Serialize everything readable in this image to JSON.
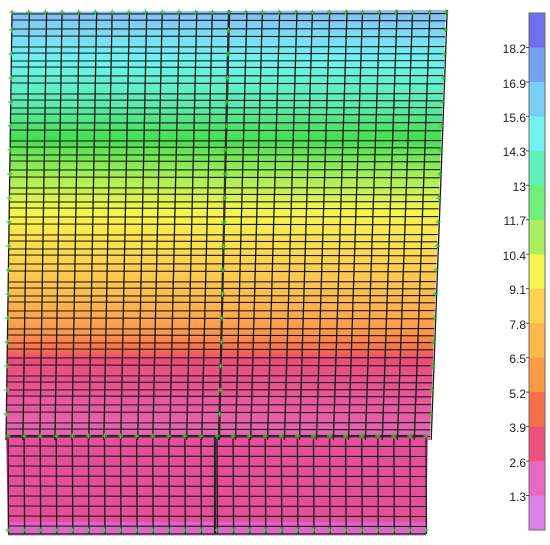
{
  "legend": {
    "labels": [
      "18.2",
      "16.9",
      "15.6",
      "14.3",
      "13",
      "11.7",
      "10.4",
      "9.1",
      "7.8",
      "6.5",
      "5.2",
      "3.9",
      "2.6",
      "1.3"
    ],
    "band_colors": [
      "#7070ee",
      "#74a2f2",
      "#7ad0f7",
      "#72f3ee",
      "#60f0b8",
      "#6ff07a",
      "#a8f060",
      "#f6f650",
      "#fcd24e",
      "#fcb848",
      "#fc9a44",
      "#f86e46",
      "#ee507c",
      "#e868c4",
      "#dc80ea"
    ]
  },
  "contour": {
    "stops": [
      {
        "at": 0.0,
        "color": "#7ab6ee"
      },
      {
        "at": 0.05,
        "color": "#74d4f4"
      },
      {
        "at": 0.12,
        "color": "#5ef4ee"
      },
      {
        "at": 0.22,
        "color": "#4ee8a8"
      },
      {
        "at": 0.3,
        "color": "#36dc40"
      },
      {
        "at": 0.38,
        "color": "#96ec48"
      },
      {
        "at": 0.47,
        "color": "#f6f43c"
      },
      {
        "at": 0.58,
        "color": "#fcd040"
      },
      {
        "at": 0.68,
        "color": "#fcb040"
      },
      {
        "at": 0.75,
        "color": "#fc8c3e"
      },
      {
        "at": 0.79,
        "color": "#f8623c"
      },
      {
        "at": 0.81,
        "color": "#ea3c6c"
      },
      {
        "at": 0.9,
        "color": "#e64890"
      },
      {
        "at": 1.0,
        "color": "#e05ab0"
      }
    ]
  }
}
